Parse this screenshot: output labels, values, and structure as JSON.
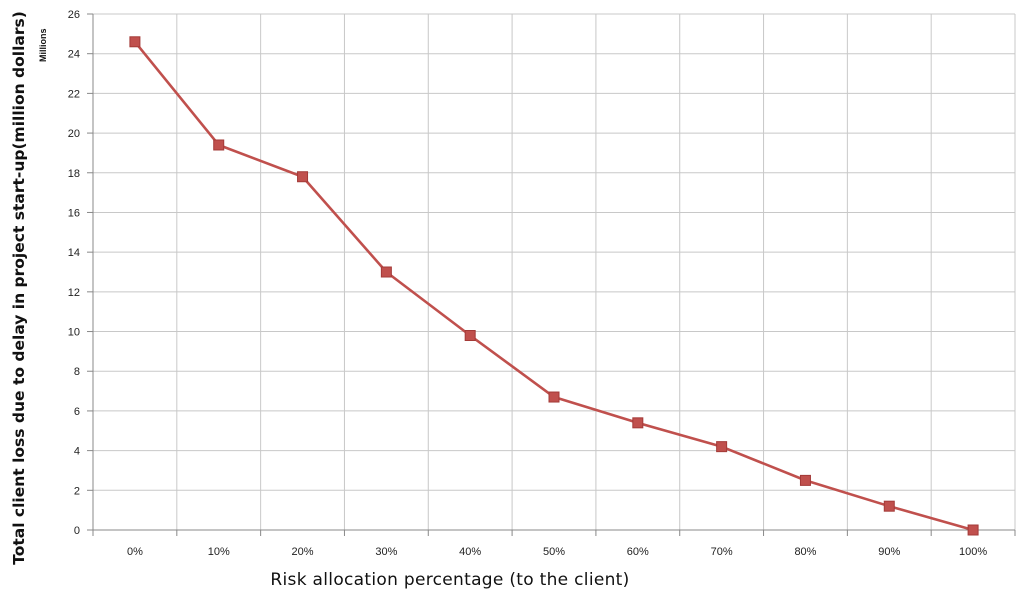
{
  "chart_data": {
    "type": "line",
    "title": "",
    "xlabel": "Risk allocation percentage  (to the client)",
    "ylabel": "Total client loss due to delay in project start-up(million dollars)",
    "units_label": "Millions",
    "categories": [
      "0%",
      "10%",
      "20%",
      "30%",
      "40%",
      "50%",
      "60%",
      "70%",
      "80%",
      "90%",
      "100%"
    ],
    "series": [
      {
        "values": [
          24.6,
          19.4,
          17.8,
          13.0,
          9.8,
          6.7,
          5.4,
          4.2,
          2.5,
          1.2,
          0.0
        ]
      }
    ],
    "ylim": [
      0,
      26
    ],
    "yticks": [
      "0",
      "2",
      "4",
      "6",
      "8",
      "10",
      "12",
      "14",
      "16",
      "18",
      "20",
      "22",
      "24",
      "26"
    ],
    "grid": true,
    "legend": "none",
    "colors": {
      "line": "#C0504D",
      "marker": "#C0504D",
      "marker_edge": "#A33A37",
      "grid": "#C8C8C8"
    }
  }
}
